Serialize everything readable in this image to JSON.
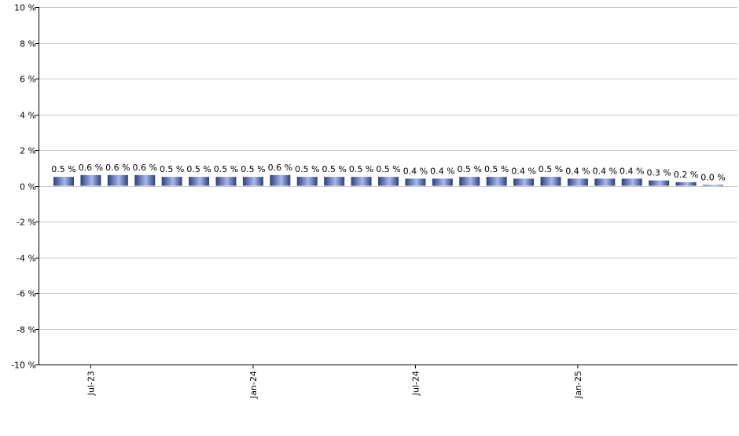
{
  "chart_data": {
    "type": "bar",
    "title": "",
    "xlabel": "",
    "ylabel": "",
    "ylim": [
      -10,
      10
    ],
    "y_ticks": [
      10,
      8,
      6,
      4,
      2,
      0,
      -2,
      -4,
      -6,
      -8,
      -10
    ],
    "y_tick_labels": [
      "10 %",
      "8 %",
      "6 %",
      "4 %",
      "2 %",
      "0 %",
      "-2 %",
      "-4 %",
      "-6 %",
      "-8 %",
      "-10 %"
    ],
    "grid": true,
    "legend": "none",
    "categories": [
      "2023-06",
      "2023-07",
      "2023-08",
      "2023-09",
      "2023-10",
      "2023-11",
      "2023-12",
      "2024-01",
      "2024-02",
      "2024-03",
      "2024-04",
      "2024-05",
      "2024-06",
      "2024-07",
      "2024-08",
      "2024-09",
      "2024-10",
      "2024-11",
      "2024-12",
      "2025-01",
      "2025-02",
      "2025-03",
      "2025-04",
      "2025-05",
      "2025-06"
    ],
    "x_tick_labels": [
      {
        "category": "2023-07",
        "label": "Jul-23"
      },
      {
        "category": "2024-01",
        "label": "Jan-24"
      },
      {
        "category": "2024-07",
        "label": "Jul-24"
      },
      {
        "category": "2025-01",
        "label": "Jan-25"
      }
    ],
    "values": [
      0.5,
      0.6,
      0.6,
      0.6,
      0.5,
      0.5,
      0.5,
      0.5,
      0.6,
      0.5,
      0.5,
      0.5,
      0.5,
      0.4,
      0.4,
      0.5,
      0.5,
      0.4,
      0.5,
      0.4,
      0.4,
      0.4,
      0.3,
      0.2,
      0.0
    ],
    "data_labels": [
      "0.5 %",
      "0.6 %",
      "0.6 %",
      "0.6 %",
      "0.5 %",
      "0.5 %",
      "0.5 %",
      "0.5 %",
      "0.6 %",
      "0.5 %",
      "0.5 %",
      "0.5 %",
      "0.5 %",
      "0.4 %",
      "0.4 %",
      "0.5 %",
      "0.5 %",
      "0.4 %",
      "0.5 %",
      "0.4 %",
      "0.4 %",
      "0.4 %",
      "0.3 %",
      "0.2 %",
      "0.0 %"
    ],
    "colors": {
      "bar_light": "#a7b9f0",
      "bar_mid": "#6e8ed8",
      "bar_dark": "#2f3f78",
      "grid": "#c8c8c8",
      "axis": "#000000"
    }
  }
}
